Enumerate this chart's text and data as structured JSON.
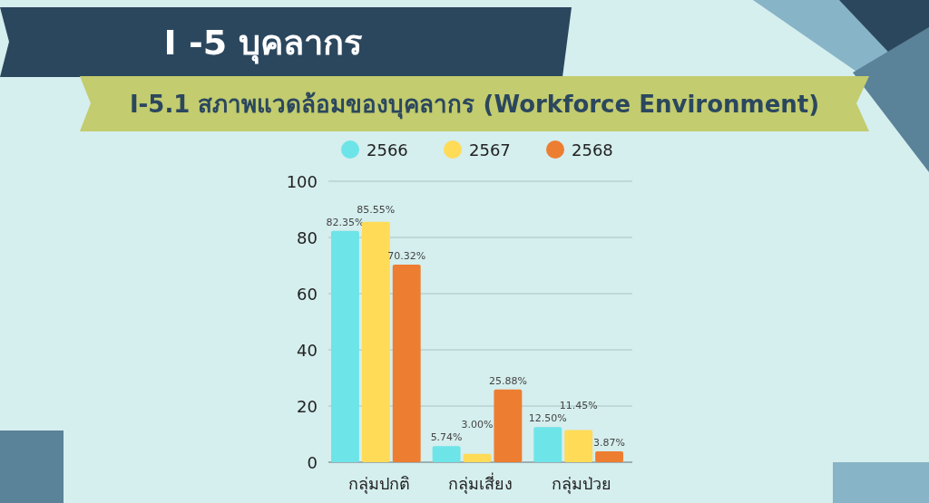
{
  "chart_data": {
    "type": "bar",
    "title": "I -5 บุคลากร",
    "subtitle": "I-5.1 สภาพแวดล้อมของบุคลากร (Workforce Environment)",
    "categories": [
      "กลุ่มปกติ",
      "กลุ่มเสี่ยง",
      "กลุ่มป่วย"
    ],
    "series": [
      {
        "name": "2566",
        "color": "#6de4e8",
        "values": [
          82.35,
          5.74,
          12.5
        ],
        "value_labels": [
          "82.35%",
          "5.74%",
          "12.50%"
        ]
      },
      {
        "name": "2567",
        "color": "#ffdb58",
        "values": [
          85.55,
          3.0,
          11.45
        ],
        "value_labels": [
          "85.55%",
          "3.00%",
          "11.45%"
        ]
      },
      {
        "name": "2568",
        "color": "#ed7d31",
        "values": [
          70.32,
          25.88,
          3.87
        ],
        "value_labels": [
          "70.32%",
          "25.88%",
          "3.87%"
        ]
      }
    ],
    "ylim": [
      0,
      100
    ],
    "yticks": [
      0,
      20,
      40,
      60,
      80,
      100
    ],
    "grid": "y",
    "legend": "top"
  }
}
